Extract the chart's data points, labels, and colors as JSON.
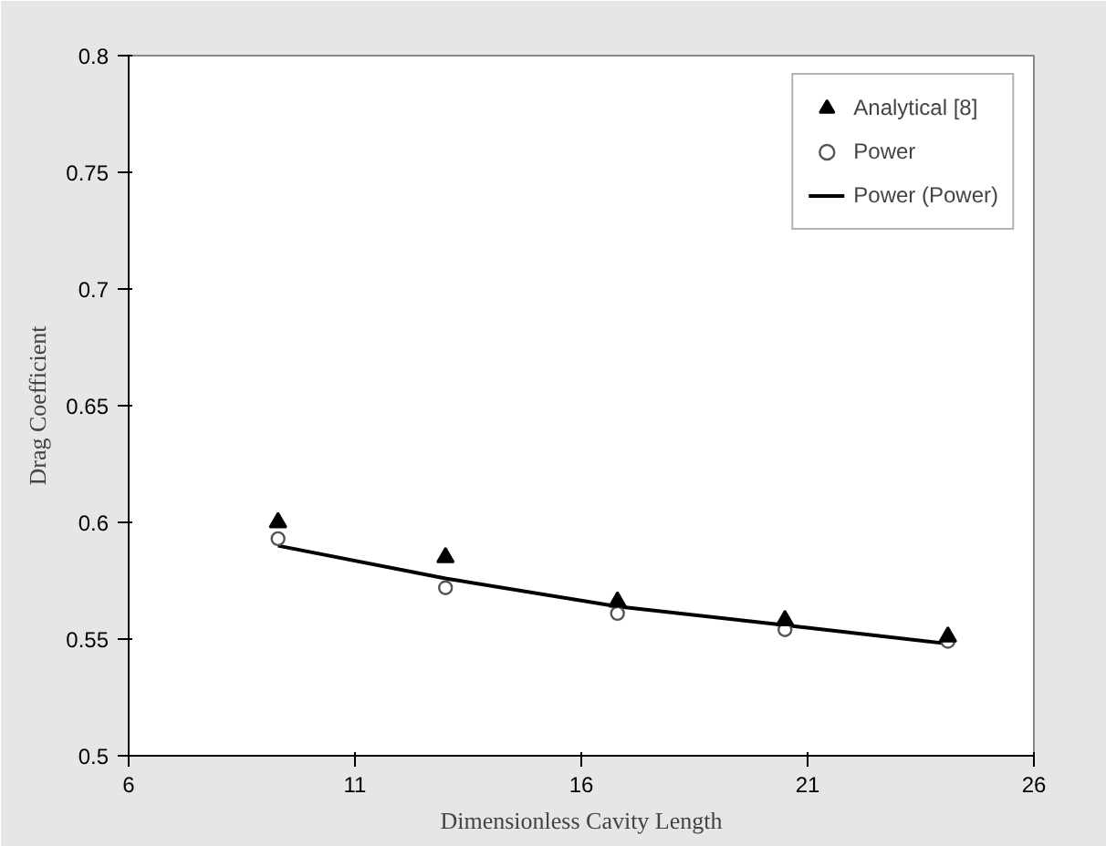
{
  "chart_data": {
    "type": "scatter",
    "xlabel": "Dimensionless Cavity Length",
    "ylabel": "Drag Coefficient",
    "xlim": [
      6,
      26
    ],
    "xticks": [
      6,
      11,
      16,
      21,
      26
    ],
    "ylim": [
      0.5,
      0.8
    ],
    "yticks": [
      0.5,
      0.55,
      0.6,
      0.65,
      0.7,
      0.75,
      0.8
    ],
    "grid": false,
    "legend": "top right",
    "series": [
      {
        "name": "Analytical [8]",
        "marker": "triangle",
        "color": "#000000",
        "x": [
          9.3,
          13.0,
          16.8,
          20.5,
          24.1
        ],
        "values": [
          0.6,
          0.585,
          0.566,
          0.558,
          0.551
        ]
      },
      {
        "name": "Power",
        "marker": "circle",
        "color": "#555555",
        "x": [
          9.3,
          13.0,
          16.8,
          20.5,
          24.1
        ],
        "values": [
          0.593,
          0.572,
          0.561,
          0.554,
          0.549
        ]
      },
      {
        "name": "Power (Power)",
        "type": "line",
        "line_style": "solid",
        "color": "#000000",
        "x": [
          9.3,
          13.0,
          16.8,
          20.5,
          24.1
        ],
        "values": [
          0.59,
          0.576,
          0.564,
          0.556,
          0.548
        ]
      }
    ]
  }
}
